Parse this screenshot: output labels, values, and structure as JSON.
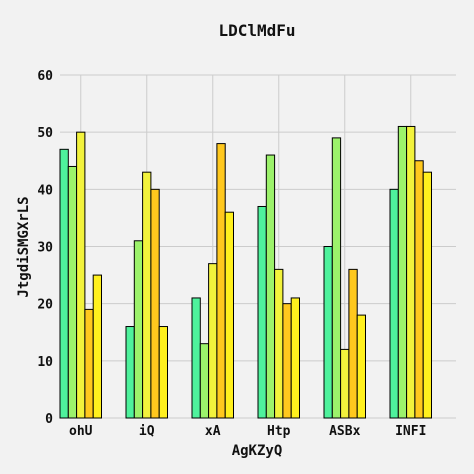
{
  "chart_data": {
    "type": "bar",
    "title": "LDClMdFu",
    "xlabel": "AgKZyQ",
    "ylabel": "JtgdiSMGXrLS",
    "categories": [
      "ohU",
      "iQ",
      "xA",
      "Htp",
      "ASBx",
      "INFI"
    ],
    "ylim": [
      0,
      60
    ],
    "yticks": [
      "0",
      "10",
      "20",
      "30",
      "40",
      "50",
      "60"
    ],
    "grid": true,
    "legend": "none",
    "series": [
      {
        "name": "s1",
        "color": "#4ef29c",
        "values": [
          47,
          16,
          21,
          37,
          30,
          40
        ]
      },
      {
        "name": "s2",
        "color": "#9cf26b",
        "values": [
          44,
          31,
          13,
          46,
          49,
          51
        ]
      },
      {
        "name": "s3",
        "color": "#f2f23c",
        "values": [
          50,
          43,
          27,
          26,
          12,
          51
        ]
      },
      {
        "name": "s4",
        "color": "#ffc81e",
        "values": [
          19,
          40,
          48,
          20,
          26,
          45
        ]
      },
      {
        "name": "s5",
        "color": "#fff01e",
        "values": [
          25,
          16,
          36,
          21,
          18,
          43
        ]
      }
    ]
  }
}
